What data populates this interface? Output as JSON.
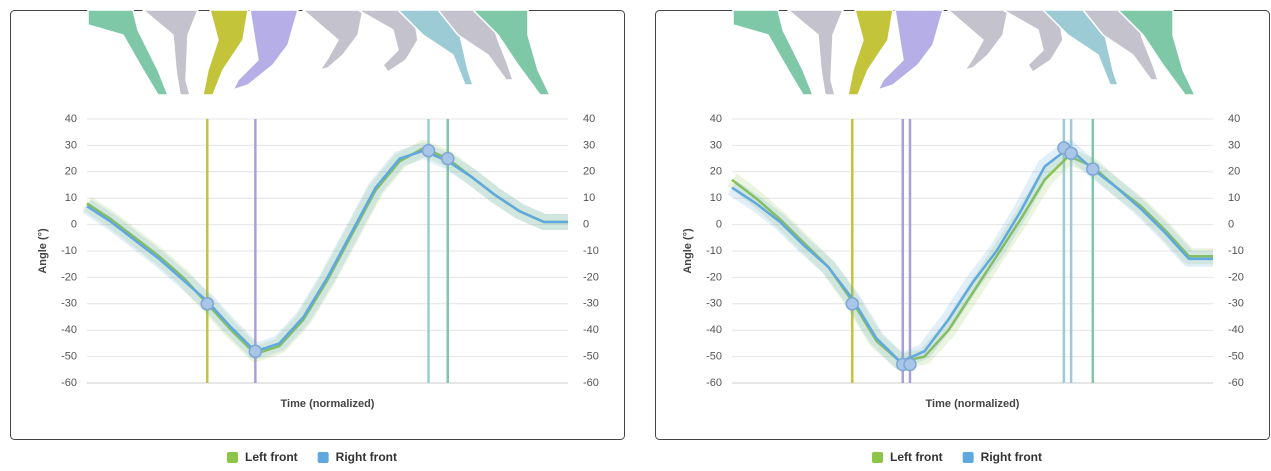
{
  "chart_data": [
    {
      "type": "line",
      "y_label": "Angle (°)",
      "x_label": "Time (normalized)",
      "x": [
        0,
        5,
        10,
        15,
        20,
        25,
        30,
        35,
        40,
        45,
        50,
        55,
        60,
        65,
        70,
        75,
        80,
        85,
        90,
        95,
        100
      ],
      "xlim": [
        0,
        100
      ],
      "ylim": [
        -60,
        40
      ],
      "yticks": [
        -60,
        -50,
        -40,
        -30,
        -20,
        -10,
        0,
        10,
        20,
        30,
        40
      ],
      "y2lim": [
        -60,
        40
      ],
      "y2ticks": [
        -60,
        -50,
        -40,
        -30,
        -20,
        -10,
        0,
        10,
        20,
        30,
        40
      ],
      "grid": true,
      "series": [
        {
          "name": "Left front",
          "color": "#8dc44a",
          "values": [
            8,
            2,
            -5,
            -12,
            -20,
            -30,
            -40,
            -49,
            -46,
            -36,
            -21,
            -4,
            13,
            24,
            29,
            25,
            18,
            11,
            5,
            1,
            1
          ]
        },
        {
          "name": "Right front",
          "color": "#5fa8e0",
          "values": [
            7,
            1,
            -6,
            -13,
            -21,
            -29,
            -39,
            -48,
            -45,
            -35,
            -20,
            -3,
            14,
            25,
            28,
            24,
            18,
            11,
            5,
            1,
            1
          ]
        }
      ],
      "events": [
        {
          "x": 25,
          "y": -30,
          "color": "#c3c43a"
        },
        {
          "x": 35,
          "y": -48,
          "color": "#a99ee0"
        },
        {
          "x": 71,
          "y": 28,
          "color": "#9ccbd6"
        },
        {
          "x": 75,
          "y": 25,
          "color": "#7ec8a8"
        }
      ]
    },
    {
      "type": "line",
      "y_label": "Angle (°)",
      "x_label": "Time (normalized)",
      "x": [
        0,
        5,
        10,
        15,
        20,
        25,
        30,
        35,
        40,
        45,
        50,
        55,
        60,
        65,
        70,
        75,
        80,
        85,
        90,
        95,
        100
      ],
      "xlim": [
        0,
        100
      ],
      "ylim": [
        -60,
        40
      ],
      "yticks": [
        -60,
        -50,
        -40,
        -30,
        -20,
        -10,
        0,
        10,
        20,
        30,
        40
      ],
      "y2lim": [
        -60,
        40
      ],
      "y2ticks": [
        -60,
        -50,
        -40,
        -30,
        -20,
        -10,
        0,
        10,
        20,
        30,
        40
      ],
      "grid": true,
      "series": [
        {
          "name": "Left front",
          "color": "#8dc44a",
          "values": [
            17,
            10,
            2,
            -7,
            -16,
            -29,
            -44,
            -52,
            -50,
            -40,
            -26,
            -12,
            2,
            17,
            26,
            22,
            14,
            7,
            -2,
            -12,
            -12
          ]
        },
        {
          "name": "Right front",
          "color": "#5fa8e0",
          "values": [
            14,
            8,
            1,
            -8,
            -16,
            -28,
            -43,
            -52,
            -48,
            -36,
            -22,
            -10,
            5,
            22,
            29,
            21,
            14,
            6,
            -3,
            -13,
            -13
          ]
        }
      ],
      "events": [
        {
          "x": 25,
          "y": -30,
          "color": "#c3c43a"
        },
        {
          "x": 35.5,
          "y": -53,
          "color": "#a99ee0"
        },
        {
          "x": 37,
          "y": -53,
          "color": "#a99ee0"
        },
        {
          "x": 69,
          "y": 29,
          "color": "#9ccbd6"
        },
        {
          "x": 70.5,
          "y": 27,
          "color": "#9ccbd6"
        },
        {
          "x": 75,
          "y": 21,
          "color": "#7ec8a8"
        }
      ]
    }
  ]
}
